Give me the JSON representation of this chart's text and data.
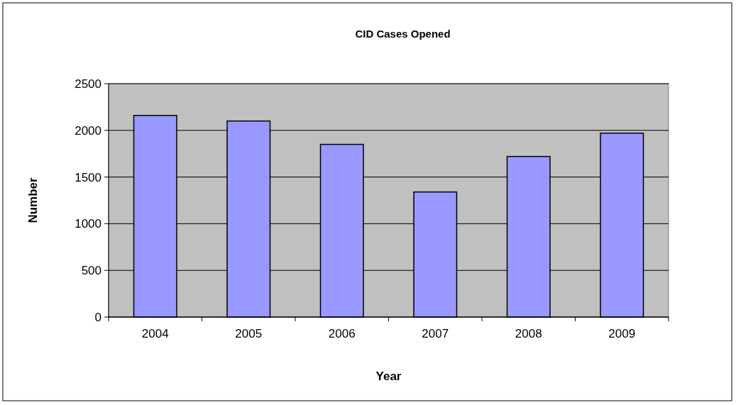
{
  "chart_data": {
    "type": "bar",
    "title": "CID Cases Opened",
    "xlabel": "Year",
    "ylabel": "Number",
    "categories": [
      "2004",
      "2005",
      "2006",
      "2007",
      "2008",
      "2009"
    ],
    "values": [
      2160,
      2100,
      1850,
      1340,
      1720,
      1970
    ],
    "color": "#9999ff",
    "ylim": [
      0,
      2500
    ],
    "yticks": [
      0,
      500,
      1000,
      1500,
      2000,
      2500
    ],
    "grid": "y"
  }
}
